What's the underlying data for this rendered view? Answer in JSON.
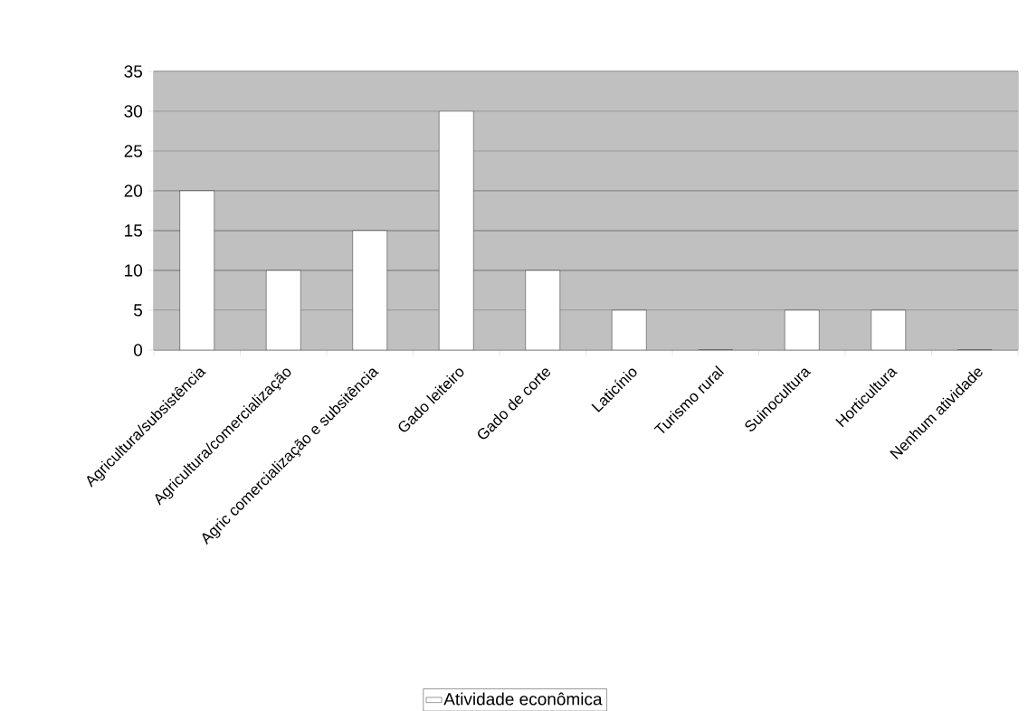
{
  "chart_data": {
    "type": "bar",
    "categories": [
      "Agricultura/subsistência",
      "Agricultura/comercialização",
      "Agric comercialização e subsitência",
      "Gado leiteiro",
      "Gado de corte",
      "Laticínio",
      "Turismo rural",
      "Suinocultura",
      "Horticultura",
      "Nenhum atividade"
    ],
    "series": [
      {
        "name": "Atividade econômica",
        "color": "#ffffff",
        "values": [
          20,
          10,
          15,
          30,
          10,
          5,
          0,
          5,
          5,
          0
        ]
      }
    ],
    "ylim": [
      0,
      35
    ],
    "yticks": [
      0,
      5,
      10,
      15,
      20,
      25,
      30,
      35
    ],
    "grid": "y",
    "legend": "bottom"
  }
}
